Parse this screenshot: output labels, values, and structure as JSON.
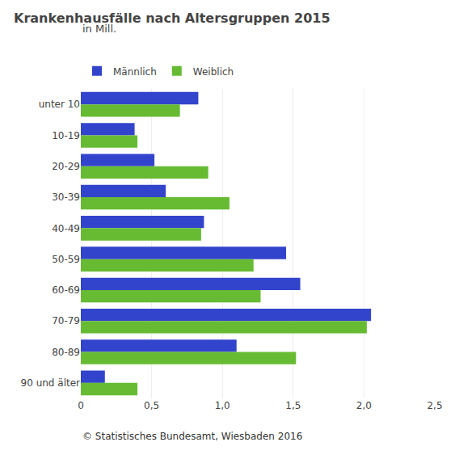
{
  "chart_data": {
    "type": "bar",
    "orientation": "horizontal",
    "title": "Krankenhausfälle nach Altersgruppen 2015",
    "subtitle": "in Mill.",
    "categories": [
      "unter 10",
      "10-19",
      "20-29",
      "30-39",
      "40-49",
      "50-59",
      "60-69",
      "70-79",
      "80-89",
      "90 und älter"
    ],
    "series": [
      {
        "name": "Männlich",
        "color": "#3344cc",
        "values": [
          0.83,
          0.38,
          0.52,
          0.6,
          0.87,
          1.45,
          1.55,
          2.05,
          1.1,
          0.17
        ]
      },
      {
        "name": "Weiblich",
        "color": "#66bb33",
        "values": [
          0.7,
          0.4,
          0.9,
          1.05,
          0.85,
          1.22,
          1.27,
          2.02,
          1.52,
          0.4
        ]
      }
    ],
    "xlim": [
      0,
      2.5
    ],
    "xticks": [
      0,
      {
        "value": 0.5,
        "label": "0,5"
      },
      {
        "value": 1.0,
        "label": "1,0"
      },
      {
        "value": 1.5,
        "label": "1,5"
      },
      {
        "value": 2.0,
        "label": "2,0"
      },
      {
        "value": 2.5,
        "label": "2,5"
      }
    ],
    "grid": true,
    "legend": "top left",
    "annotations": [
      "© Statistisches Bundesamt, Wiesbaden 2016"
    ]
  }
}
